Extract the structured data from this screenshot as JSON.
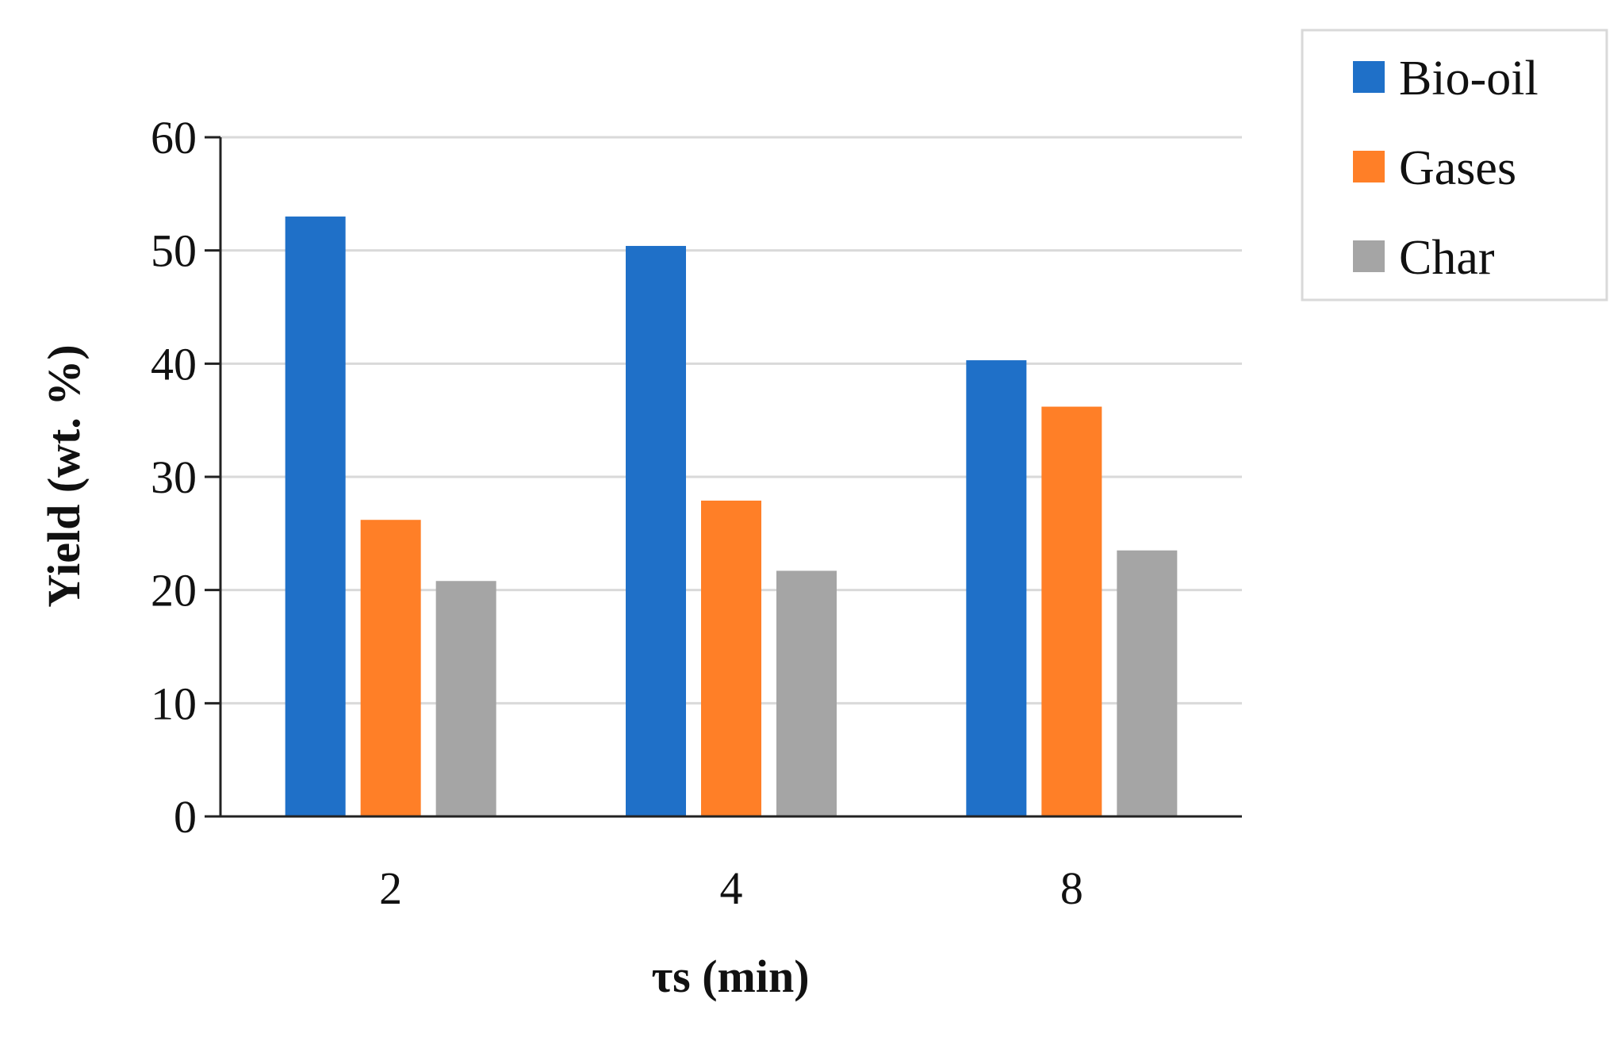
{
  "chart_data": {
    "type": "bar",
    "title": "",
    "xlabel": "τs (min)",
    "ylabel": "Yield (wt. %)",
    "categories": [
      "2",
      "4",
      "8"
    ],
    "series": [
      {
        "name": "Bio-oil",
        "color": "#1f70c8",
        "values": [
          53.0,
          50.4,
          40.3
        ]
      },
      {
        "name": "Gases",
        "color": "#ff7f27",
        "values": [
          26.2,
          27.9,
          36.2
        ]
      },
      {
        "name": "Char",
        "color": "#a5a5a5",
        "values": [
          20.8,
          21.7,
          23.5
        ]
      }
    ],
    "ylim": [
      0,
      60
    ],
    "yticks": [
      "0",
      "10",
      "20",
      "30",
      "40",
      "50",
      "60"
    ],
    "grid": true,
    "legend_position": "top-right"
  }
}
